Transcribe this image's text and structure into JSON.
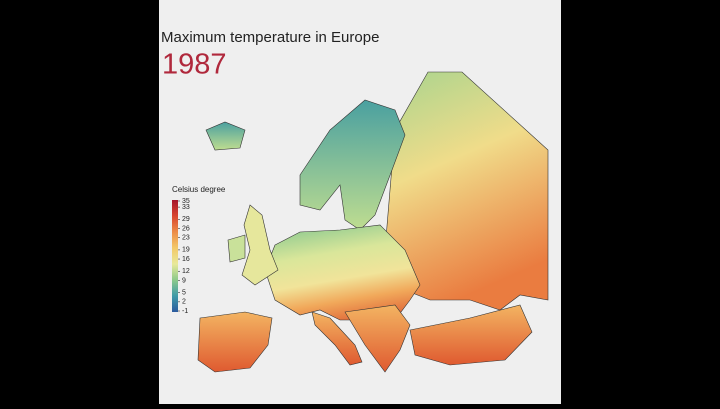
{
  "header": {
    "title": "Maximum temperature in Europe",
    "year": "1987"
  },
  "legend": {
    "title": "Celsius degree",
    "lim": [
      -1,
      35
    ],
    "ticks": [
      35,
      33,
      29,
      26,
      23,
      19,
      16,
      12,
      9,
      5,
      2,
      -1
    ],
    "colors": [
      "#2b5a9e",
      "#3f9aa8",
      "#8cc98a",
      "#e8e99a",
      "#f3c969",
      "#ec8c47",
      "#d8452e",
      "#a5142a"
    ]
  }
}
